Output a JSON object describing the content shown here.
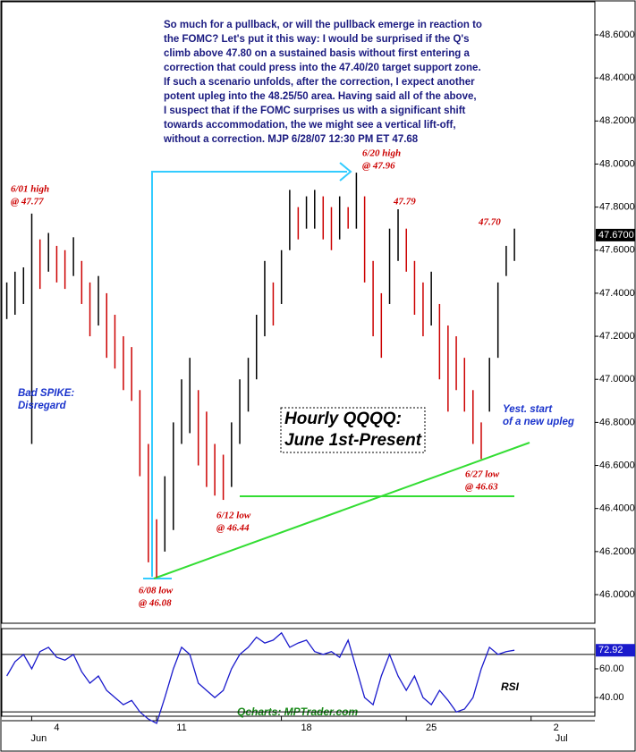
{
  "chart_data": [
    {
      "type": "ohlc",
      "x": [
        -1,
        -0.67,
        -0.33,
        0,
        0.33,
        0.67,
        1,
        1.33,
        1.67,
        2,
        2.33,
        2.67,
        3,
        3.33,
        3.67,
        4,
        4.33,
        4.67,
        5,
        5.33,
        5.67,
        6,
        6.33,
        6.67,
        7,
        7.33,
        7.67,
        8,
        8.33,
        8.67,
        9,
        9.33,
        9.67,
        10,
        10.33,
        10.67,
        11,
        11.33,
        11.67,
        12,
        12.33,
        12.67,
        13,
        13.33,
        13.67,
        14,
        14.33,
        14.67,
        15,
        15.33,
        15.67,
        16,
        16.33,
        16.67,
        17,
        17.33,
        17.67,
        18,
        18.33,
        18.67,
        19,
        19.33
      ],
      "high": [
        47.45,
        47.5,
        47.52,
        47.77,
        47.65,
        47.68,
        47.62,
        47.6,
        47.66,
        47.55,
        47.45,
        47.48,
        47.4,
        47.3,
        47.2,
        47.15,
        46.95,
        46.7,
        46.35,
        46.55,
        46.8,
        47.0,
        47.1,
        46.95,
        46.85,
        46.7,
        46.65,
        46.8,
        47.0,
        47.1,
        47.3,
        47.55,
        47.45,
        47.6,
        47.88,
        47.8,
        47.85,
        47.88,
        47.85,
        47.8,
        47.85,
        47.8,
        47.96,
        47.85,
        47.55,
        47.4,
        47.7,
        47.79,
        47.7,
        47.55,
        47.45,
        47.5,
        47.35,
        47.25,
        47.2,
        47.1,
        46.95,
        46.8,
        47.1,
        47.45,
        47.62,
        47.7
      ],
      "low": [
        47.28,
        47.3,
        47.35,
        46.7,
        47.42,
        47.5,
        47.45,
        47.42,
        47.48,
        47.35,
        47.2,
        47.25,
        47.1,
        47.05,
        46.95,
        46.9,
        46.55,
        46.15,
        46.08,
        46.2,
        46.3,
        46.7,
        46.75,
        46.6,
        46.5,
        46.46,
        46.44,
        46.5,
        46.7,
        46.85,
        47.0,
        47.2,
        47.25,
        47.35,
        47.6,
        47.65,
        47.7,
        47.7,
        47.65,
        47.6,
        47.65,
        47.7,
        47.7,
        47.45,
        47.2,
        47.1,
        47.35,
        47.55,
        47.5,
        47.3,
        47.2,
        47.25,
        47.0,
        46.85,
        46.95,
        46.85,
        46.7,
        46.63,
        46.85,
        47.1,
        47.48,
        47.55
      ],
      "up_color": "#000000",
      "down_color": "#cc0000",
      "xlim": [
        -1.2,
        22.55
      ],
      "xticks": [
        {
          "value": 1,
          "label": "4"
        },
        {
          "value": 6,
          "label": "11"
        },
        {
          "value": 11,
          "label": "18"
        },
        {
          "value": 16,
          "label": "25"
        },
        {
          "value": 21,
          "label": "2"
        }
      ],
      "month_labels": [
        {
          "value": 1,
          "label": "Jun"
        },
        {
          "value": 21,
          "label": "Jul"
        }
      ],
      "ylim": [
        46.0,
        48.6
      ],
      "yticks": [
        {
          "value": 46.0,
          "label": "46.0000"
        },
        {
          "value": 46.2,
          "label": "46.2000"
        },
        {
          "value": 46.4,
          "label": "46.4000"
        },
        {
          "value": 46.6,
          "label": "46.6000"
        },
        {
          "value": 46.8,
          "label": "46.8000"
        },
        {
          "value": 47.0,
          "label": "47.0000"
        },
        {
          "value": 47.2,
          "label": "47.2000"
        },
        {
          "value": 47.4,
          "label": "47.4000"
        },
        {
          "value": 47.6,
          "label": "47.6000"
        },
        {
          "value": 47.8,
          "label": "47.8000"
        },
        {
          "value": 48.0,
          "label": "48.0000"
        },
        {
          "value": 48.2,
          "label": "48.2000"
        },
        {
          "value": 48.4,
          "label": "48.4000"
        },
        {
          "value": 48.6,
          "label": "48.6000"
        }
      ],
      "last_price": {
        "value": 47.67,
        "label": "47.6700"
      },
      "annotations": [
        {
          "lines": [
            "So much for a pullback, or will the pullback emerge in reaction to",
            "the FOMC? Let's put it this way: I would be surprised if the Q's",
            "climb above 47.80 on a sustained basis without first entering a",
            "correction that could press into the 47.40/20 target support zone.",
            "If such a scenario unfolds, after the correction, I expect another",
            "potent upleg into the 48.25/50 area. Having said all of the above,",
            "I suspect that if the FOMC surprises us with a significant shift",
            "towards accommodation, the we might see a vertical lift-off,",
            "without a correction.  MJP  6/28/07  12:30 PM ET 47.68"
          ]
        },
        {
          "lines": [
            "6/01 high",
            "@ 47.77"
          ]
        },
        {
          "lines": [
            "6/20 high",
            "@ 47.96"
          ]
        },
        {
          "lines": [
            "47.79"
          ]
        },
        {
          "lines": [
            "47.70"
          ]
        },
        {
          "lines": [
            "Bad SPIKE:",
            "Disregard"
          ]
        },
        {
          "lines": [
            "Hourly QQQQ:",
            "June 1st-Present"
          ]
        },
        {
          "lines": [
            "Yest.  start",
            "of a new upleg"
          ]
        },
        {
          "lines": [
            "6/27 low",
            "@ 46.63"
          ]
        },
        {
          "lines": [
            "6/12 low",
            "@ 46.44"
          ]
        },
        {
          "lines": [
            "6/08 low",
            "@ 46.08"
          ]
        },
        {
          "lines": [
            "Qcharts: MPTrader.com"
          ]
        }
      ]
    },
    {
      "type": "line",
      "title": "RSI",
      "color": "#1a1acc",
      "values": [
        55,
        65,
        70,
        60,
        72,
        75,
        68,
        66,
        70,
        58,
        50,
        55,
        45,
        40,
        35,
        38,
        30,
        25,
        22,
        40,
        60,
        75,
        70,
        50,
        45,
        40,
        45,
        60,
        70,
        75,
        82,
        78,
        80,
        85,
        75,
        78,
        80,
        72,
        70,
        72,
        68,
        80,
        60,
        40,
        35,
        55,
        70,
        55,
        45,
        55,
        40,
        35,
        45,
        38,
        30,
        32,
        40,
        60,
        75,
        70,
        72,
        72.92
      ],
      "ylim": [
        27,
        88
      ],
      "yticks": [
        {
          "value": 40,
          "label": "40.00"
        },
        {
          "value": 60,
          "label": "60.00"
        }
      ],
      "levels": [
        70,
        30
      ],
      "last_value": {
        "value": 72.92,
        "label": "72.92"
      }
    }
  ]
}
